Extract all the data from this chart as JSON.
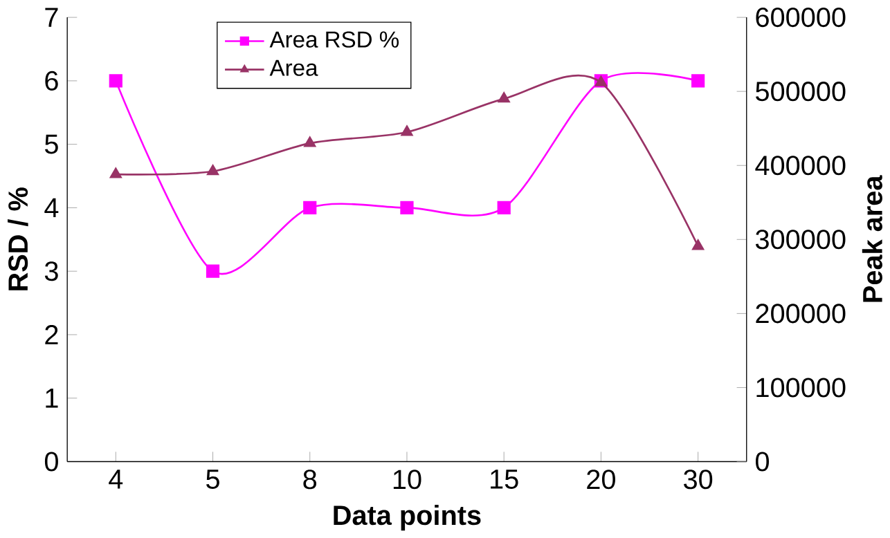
{
  "chart_data": {
    "type": "line",
    "xlabel": "Data points",
    "ylabel": "RSD / %",
    "y2label": "Peak area",
    "categories": [
      "4",
      "5",
      "8",
      "10",
      "15",
      "20",
      "30"
    ],
    "series": [
      {
        "name": "Area RSD %",
        "color": "#ff00ff",
        "marker": "square",
        "values": [
          6,
          3,
          4,
          4,
          4,
          6,
          6
        ]
      },
      {
        "name": "Area",
        "color": "#993366",
        "marker": "triangle",
        "axis": "y2",
        "values": [
          388000,
          392000,
          430000,
          445000,
          490000,
          512000,
          291000
        ]
      }
    ],
    "ylim": [
      0,
      7
    ],
    "yticks": [
      0,
      1,
      2,
      3,
      4,
      5,
      6,
      7
    ],
    "y2lim": [
      0,
      600000
    ],
    "y2ticks": [
      0,
      100000,
      200000,
      300000,
      400000,
      500000,
      600000
    ],
    "legend": "top left",
    "grid": false
  }
}
